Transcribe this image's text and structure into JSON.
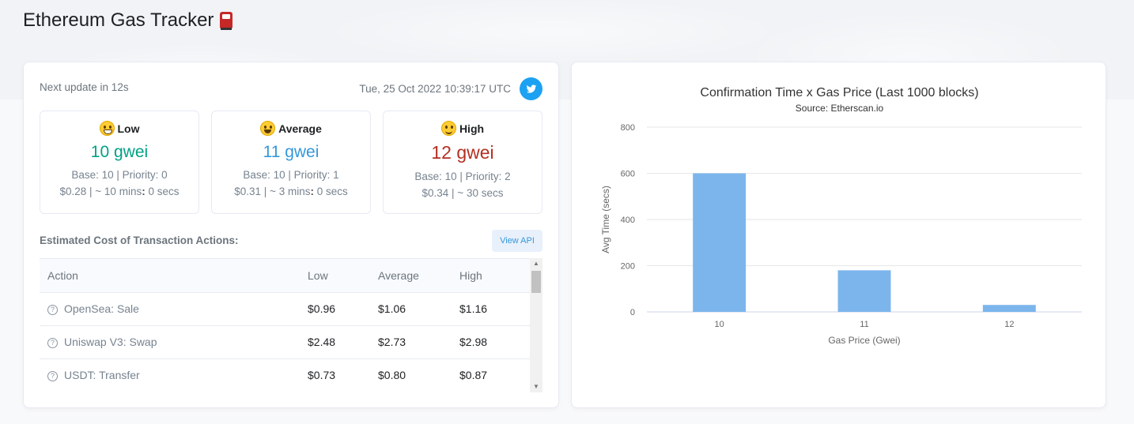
{
  "page": {
    "title": "Ethereum Gas Tracker",
    "icon": "fuel-pump-icon"
  },
  "status": {
    "next_update": "Next update in 12s",
    "timestamp": "Tue, 25 Oct 2022 10:39:17 UTC",
    "share_icon": "twitter-icon"
  },
  "gas": {
    "low": {
      "label": "Low",
      "emoji": "grinning-face",
      "value": "10 gwei",
      "base_priority": "Base: 10 | Priority: 0",
      "cost_prefix": "$0.28 | ~ 10 mins",
      "cost_suffix": " 0 secs"
    },
    "average": {
      "label": "Average",
      "emoji": "smiling-face-open-mouth",
      "value": "11 gwei",
      "base_priority": "Base: 10 | Priority: 1",
      "cost_prefix": "$0.31 | ~ 3 mins",
      "cost_suffix": " 0 secs"
    },
    "high": {
      "label": "High",
      "emoji": "slightly-smiling-face",
      "value": "12 gwei",
      "base_priority": "Base: 10 | Priority: 2",
      "cost": "$0.34 | ~ 30 secs"
    },
    "separator": ":"
  },
  "actions": {
    "title": "Estimated Cost of Transaction Actions:",
    "api_button": "View API",
    "columns": [
      "Action",
      "Low",
      "Average",
      "High"
    ],
    "rows": [
      {
        "action": "OpenSea: Sale",
        "low": "$0.96",
        "average": "$1.06",
        "high": "$1.16"
      },
      {
        "action": "Uniswap V3: Swap",
        "low": "$2.48",
        "average": "$2.73",
        "high": "$2.98"
      },
      {
        "action": "USDT: Transfer",
        "low": "$0.73",
        "average": "$0.80",
        "high": "$0.87"
      }
    ],
    "help_glyph": "?"
  },
  "colors": {
    "low": "#00a186",
    "average": "#3498db",
    "high": "#b33022",
    "bar": "#7cb5ec",
    "twitter": "#1da1f2"
  },
  "chart_data": {
    "type": "bar",
    "title": "Confirmation Time x Gas Price (Last 1000 blocks)",
    "subtitle": "Source: Etherscan.io",
    "xlabel": "Gas Price (Gwei)",
    "ylabel": "Avg Time (secs)",
    "categories": [
      "10",
      "11",
      "12"
    ],
    "values": [
      600,
      180,
      30
    ],
    "yticks": [
      0,
      200,
      400,
      600,
      800
    ],
    "ylim": [
      0,
      800
    ],
    "grid": true,
    "legend": "none"
  }
}
